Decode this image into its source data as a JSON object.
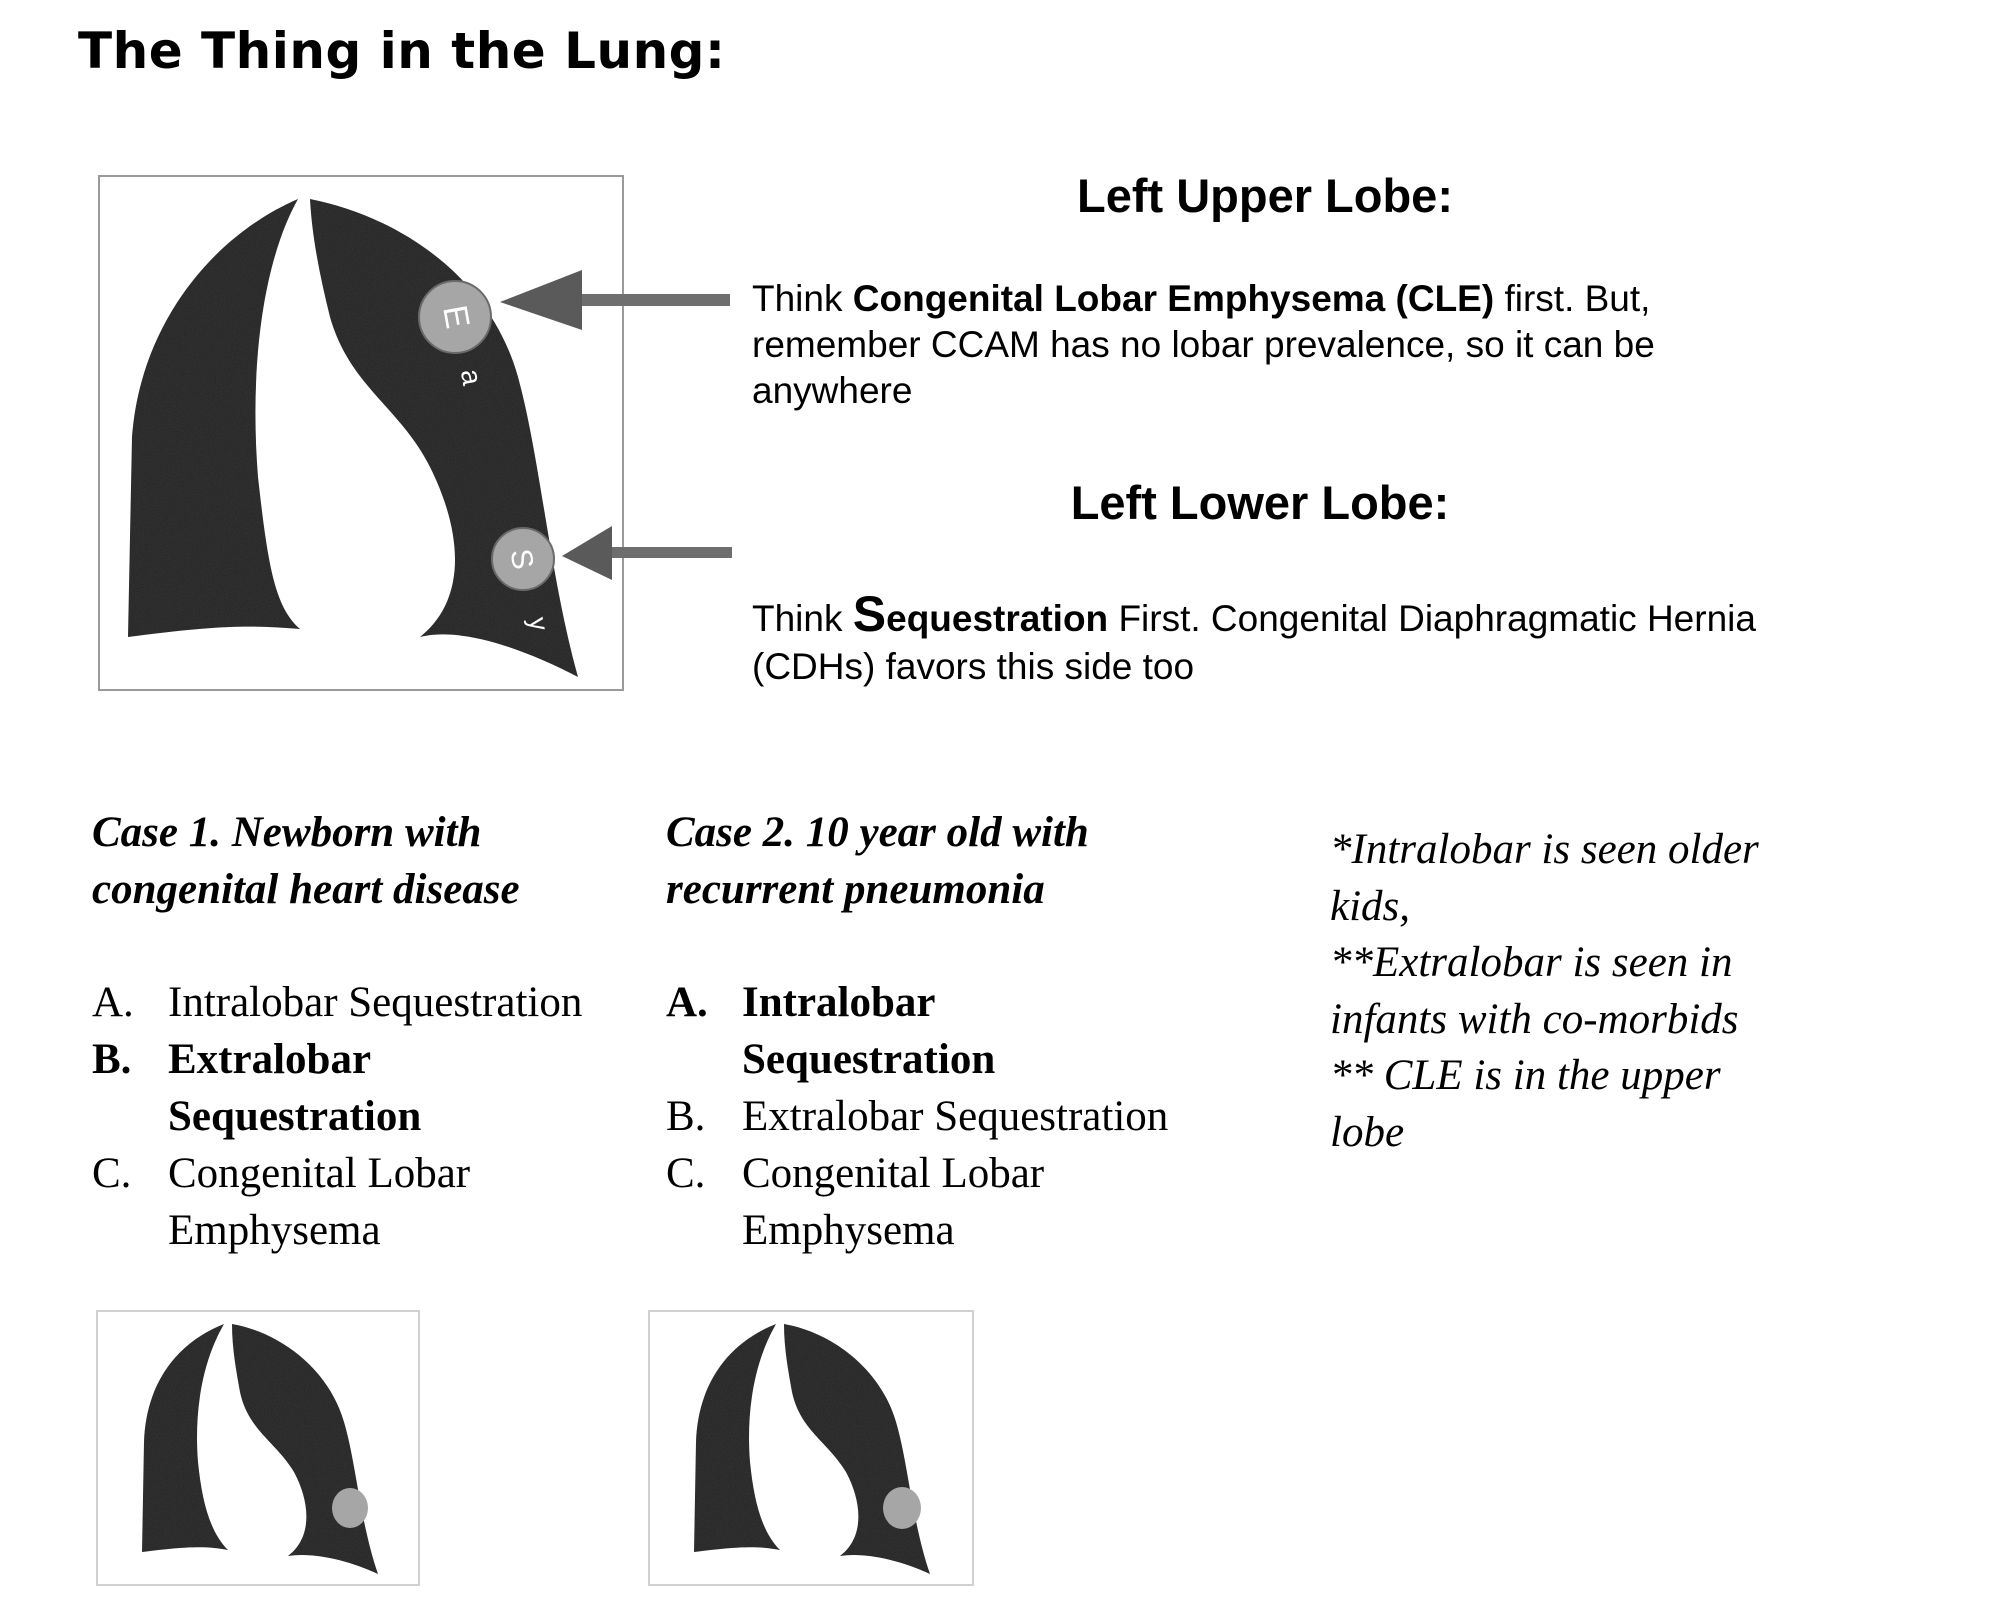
{
  "page": {
    "title": "The Thing in the Lung:"
  },
  "main_figure": {
    "upper_marker_letter": "E",
    "upper_marker_sub": "a",
    "lower_marker_letter": "S",
    "lower_marker_sub": "y"
  },
  "upper_lobe": {
    "heading": "Left Upper Lobe:",
    "text_prefix": "Think ",
    "text_bold": "Congenital Lobar Emphysema (CLE)",
    "text_rest": " first. But, remember CCAM has no lobar prevalence, so it can be anywhere"
  },
  "lower_lobe": {
    "heading": "Left Lower Lobe:",
    "text_prefix": "Think ",
    "text_bold_first": "S",
    "text_bold_rest": "equestration",
    "text_rest": " First.  Congenital Diaphragmatic Hernia (CDHs) favors this side too"
  },
  "cases": [
    {
      "title": "Case 1.  Newborn with congenital heart disease",
      "options": [
        {
          "letter": "A.",
          "label": "Intralobar Sequestration",
          "correct": false
        },
        {
          "letter": "B.",
          "label": "Extralobar Sequestration",
          "correct": true
        },
        {
          "letter": "C.",
          "label": "Congenital Lobar Emphysema",
          "correct": false
        }
      ]
    },
    {
      "title": "Case 2.  10 year old with recurrent pneumonia",
      "options": [
        {
          "letter": "A.",
          "label": "Intralobar Sequestration",
          "correct": true
        },
        {
          "letter": "B.",
          "label": "Extralobar Sequestration",
          "correct": false
        },
        {
          "letter": "C.",
          "label": "Congenital Lobar Emphysema",
          "correct": false
        }
      ]
    }
  ],
  "notes": [
    "*Intralobar is seen older kids,",
    "**Extralobar is seen in infants with co-morbids",
    "** CLE is in the upper lobe"
  ],
  "colors": {
    "lung_fill": "#1e1e1e",
    "marker_fill": "#a6a6a6",
    "arrow_fill": "#6e6e6e"
  }
}
